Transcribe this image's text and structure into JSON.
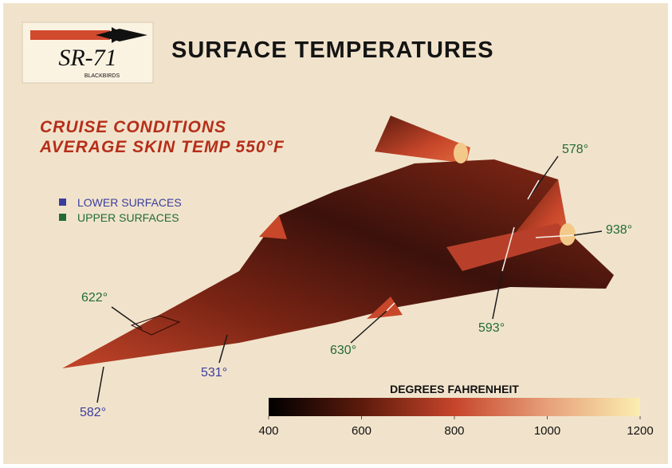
{
  "logo": {
    "name": "SR-71",
    "subtitle": "BLACKBIRDS"
  },
  "title": "SURFACE TEMPERATURES",
  "conditions": [
    "CRUISE CONDITIONS",
    "AVERAGE SKIN TEMP 550°F"
  ],
  "legend": [
    "LOWER SURFACES",
    "UPPER SURFACES"
  ],
  "callouts": [
    "578°",
    "938°",
    "593°",
    "630°",
    "531°",
    "582°",
    "622°"
  ],
  "colorbar": {
    "title": "DEGREES FAHRENHEIT",
    "lim": [
      400,
      1200
    ],
    "ticks": [
      400,
      600,
      800,
      1000,
      1200
    ]
  }
}
